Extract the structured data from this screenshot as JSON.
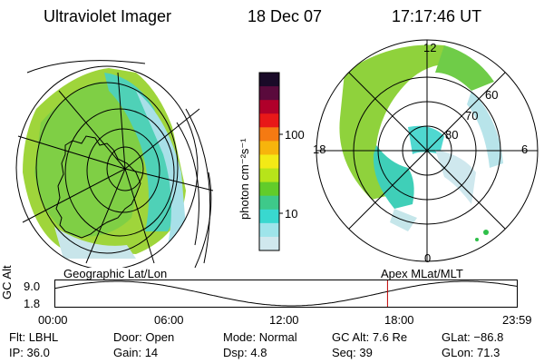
{
  "header": {
    "instrument": "Ultraviolet Imager",
    "date": "18 Dec 07",
    "time": "17:17:46 UT"
  },
  "colorbar": {
    "unit_label": "photon cm⁻²s⁻¹",
    "ticks": [
      "100",
      "10"
    ],
    "colors": [
      "#1a0a28",
      "#5a0a3c",
      "#b0002a",
      "#e81818",
      "#f57a12",
      "#f7b40c",
      "#f3ea16",
      "#b7e41a",
      "#62cc2a",
      "#3ec98a",
      "#39d8cf",
      "#9ee4ea",
      "#d0e8ee"
    ]
  },
  "polar_plot": {
    "labels": {
      "top": "12",
      "left": "18",
      "right": "6",
      "bottom": "0"
    },
    "lat_rings": [
      "60",
      "70",
      "80"
    ]
  },
  "panel_labels": {
    "left": "Geographic Lat/Lon",
    "right": "Apex  MLat/MLT"
  },
  "orbit_plot": {
    "y_label": "GC Alt",
    "y_ticks": [
      "9.0",
      "1.8"
    ],
    "x_ticks": [
      "00:00",
      "06:00",
      "12:00",
      "18:00",
      "23:59"
    ],
    "current_fraction": 0.7204
  },
  "info": {
    "row1": [
      {
        "key": "Flt:",
        "value": "LBHL"
      },
      {
        "key": "Door:",
        "value": "Open"
      },
      {
        "key": "Mode:",
        "value": "Normal"
      },
      {
        "key": "GC Alt:",
        "value": "7.6 Re"
      },
      {
        "key": "GLat:",
        "value": "−86.8"
      }
    ],
    "row2": [
      {
        "key": "IP:",
        "value": "36.0"
      },
      {
        "key": "Gain:",
        "value": "14"
      },
      {
        "key": "Dsp:",
        "value": "4.8"
      },
      {
        "key": "Seq:",
        "value": "39"
      },
      {
        "key": "GLon:",
        "value": "71.3"
      }
    ]
  }
}
